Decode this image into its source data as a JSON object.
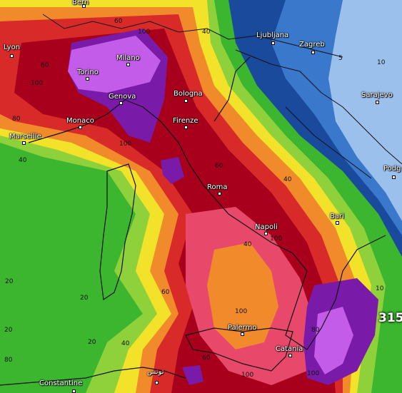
{
  "colors": {
    "green_dark": "#1e8a2e",
    "green": "#3cb52f",
    "green_light": "#8fd13a",
    "yellow": "#f2e22a",
    "orange": "#f08a2a",
    "red": "#d92a2a",
    "crimson": "#a8001c",
    "pink": "#e8486a",
    "purple": "#7a1aa8",
    "violet": "#c35ce8",
    "blue_dark": "#1a4a9c",
    "blue": "#3a78cc",
    "blue_light": "#9cc0ec"
  },
  "cities": [
    {
      "id": "bern",
      "name": "Bern"
    },
    {
      "id": "lyon",
      "name": "Lyon"
    },
    {
      "id": "milano",
      "name": "Milano"
    },
    {
      "id": "torino",
      "name": "Torino"
    },
    {
      "id": "genova",
      "name": "Genova"
    },
    {
      "id": "bologna",
      "name": "Bologna"
    },
    {
      "id": "monaco",
      "name": "Monaco"
    },
    {
      "id": "marseille",
      "name": "Marseille"
    },
    {
      "id": "firenze",
      "name": "Firenze"
    },
    {
      "id": "roma",
      "name": "Roma"
    },
    {
      "id": "napoli",
      "name": "Napoli"
    },
    {
      "id": "bari",
      "name": "Bari"
    },
    {
      "id": "palermo",
      "name": "Palermo"
    },
    {
      "id": "catania",
      "name": "Catania"
    },
    {
      "id": "ljubljana",
      "name": "Ljubljana"
    },
    {
      "id": "zagreb",
      "name": "Zagreb"
    },
    {
      "id": "sarajevo",
      "name": "Sarajevo"
    },
    {
      "id": "podgorica",
      "name": "Podg"
    },
    {
      "id": "constantine",
      "name": "Constantine"
    },
    {
      "id": "tunis",
      "name": "تونس"
    }
  ],
  "contour_labels": [
    "60",
    "40",
    "60",
    "100",
    "80",
    "40",
    "100",
    "60",
    "40",
    "100",
    "40",
    "20",
    "20",
    "20",
    "60",
    "100",
    "80",
    "100",
    "20",
    "40",
    "80",
    "100",
    "60",
    "100",
    "5",
    "10",
    "10"
  ],
  "max_value": "315"
}
